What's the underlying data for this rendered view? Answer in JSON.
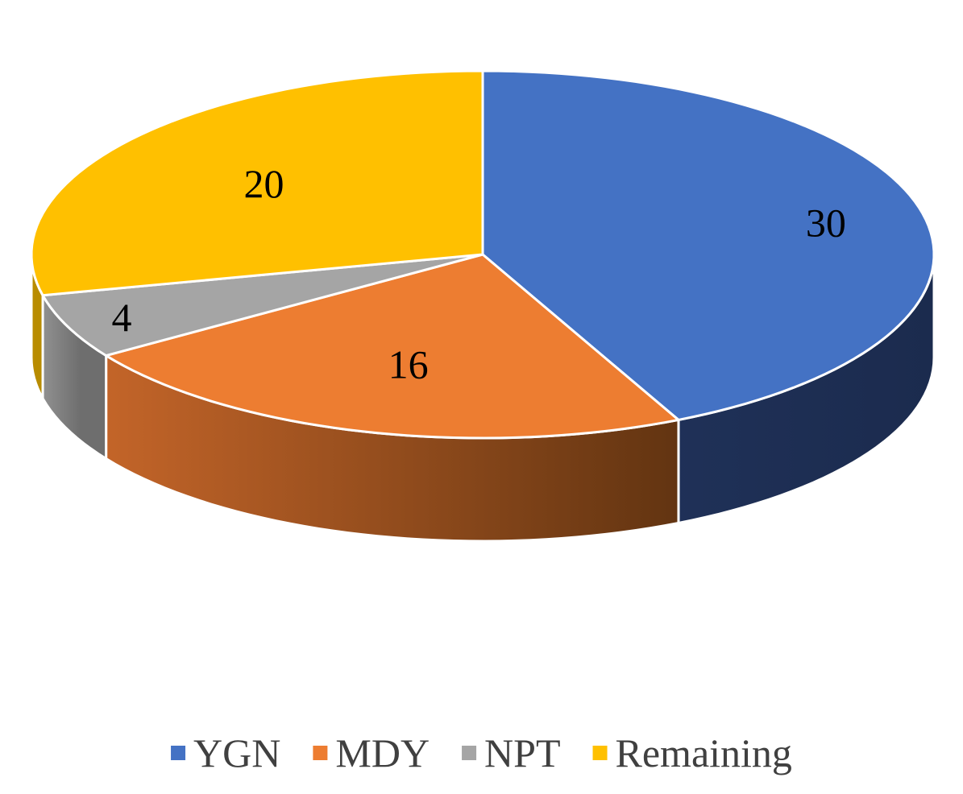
{
  "chart_data": {
    "type": "pie",
    "style": "3d",
    "categories": [
      "YGN",
      "MDY",
      "NPT",
      "Remaining"
    ],
    "values": [
      30,
      16,
      4,
      20
    ],
    "data_labels": [
      "30",
      "16",
      "4",
      "20"
    ],
    "colors": [
      "#4472C4",
      "#ED7D31",
      "#A5A5A5",
      "#FFC000"
    ],
    "start_angle_deg": 0,
    "direction": "clockwise",
    "legend": {
      "position": "bottom"
    },
    "title": ""
  }
}
